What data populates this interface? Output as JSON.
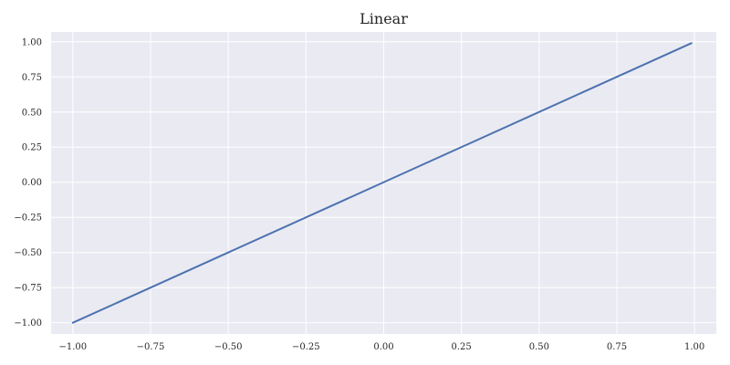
{
  "chart_data": {
    "type": "line",
    "title": "Linear",
    "xlabel": "",
    "ylabel": "",
    "xlim": [
      -1.07,
      1.07
    ],
    "ylim": [
      -1.08,
      1.07
    ],
    "x_ticks": [
      -1.0,
      -0.75,
      -0.5,
      -0.25,
      0.0,
      0.25,
      0.5,
      0.75,
      1.0
    ],
    "x_tick_labels": [
      "−1.00",
      "−0.75",
      "−0.50",
      "−0.25",
      "0.00",
      "0.25",
      "0.50",
      "0.75",
      "1.00"
    ],
    "y_ticks": [
      1.0,
      0.75,
      0.5,
      0.25,
      0.0,
      -0.25,
      -0.5,
      -0.75,
      -1.0
    ],
    "y_tick_labels": [
      "1.00",
      "0.75",
      "0.50",
      "0.25",
      "0.00",
      "−0.25",
      "−0.50",
      "−0.75",
      "−1.00"
    ],
    "grid": true,
    "series": [
      {
        "color": "#4c72b0",
        "x": [
          -1.0,
          0.99
        ],
        "y": [
          -1.0,
          0.99
        ]
      }
    ],
    "colors": {
      "plot_background": "#eaeaf2",
      "grid": "#ffffff",
      "text": "#262626"
    }
  }
}
